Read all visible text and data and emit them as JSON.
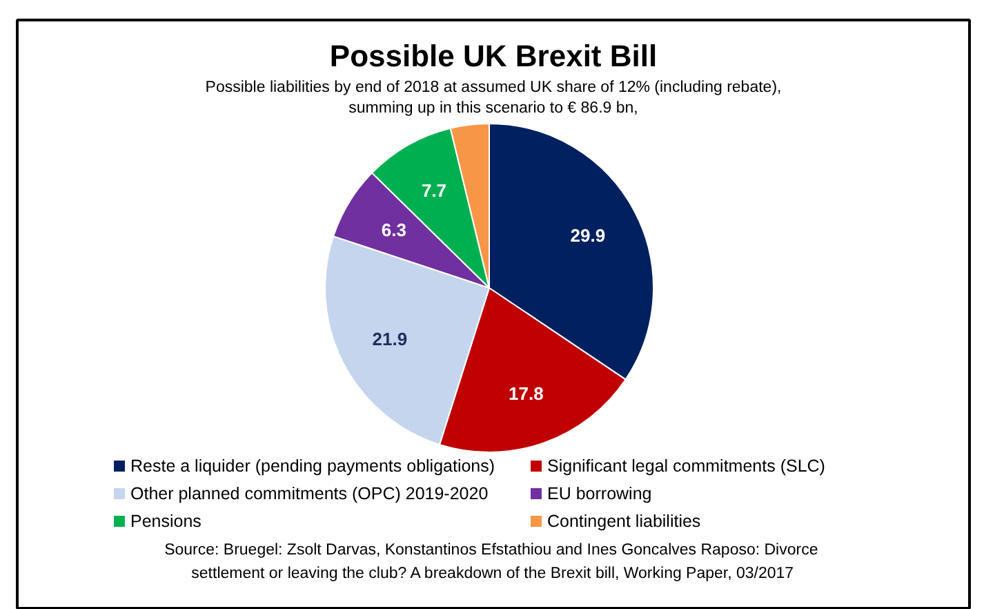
{
  "chart_data": {
    "type": "pie",
    "title": "Possible UK Brexit Bill",
    "subtitle": "Possible liabilities by end of 2018 at assumed UK share of 12% (including rebate),\nsumming up in this scenario to € 86.9 bn,",
    "categories": [
      "Reste a liquider (pending payments obligations)",
      "Significant legal commitments (SLC)",
      "Other planned commitments (OPC) 2019-2020",
      "EU borrowing",
      "Pensions",
      "Contingent liabilities"
    ],
    "values": [
      29.9,
      17.8,
      21.9,
      6.3,
      7.7,
      3.3
    ],
    "value_labels": [
      "29.9",
      "17.8",
      "21.9",
      "6.3",
      "7.7",
      null
    ],
    "colors": [
      "#002060",
      "#c00000",
      "#c5d5ee",
      "#7030a0",
      "#00b050",
      "#f79646"
    ],
    "legend": "bottom",
    "annotations": [
      "Source: Bruegel: Zsolt Darvas, Konstantinos Efstathiou and Ines  Goncalves Raposo: Divorce settlement or leaving the club? A breakdown of the Brexit bill, Working Paper, 03/2017"
    ]
  }
}
